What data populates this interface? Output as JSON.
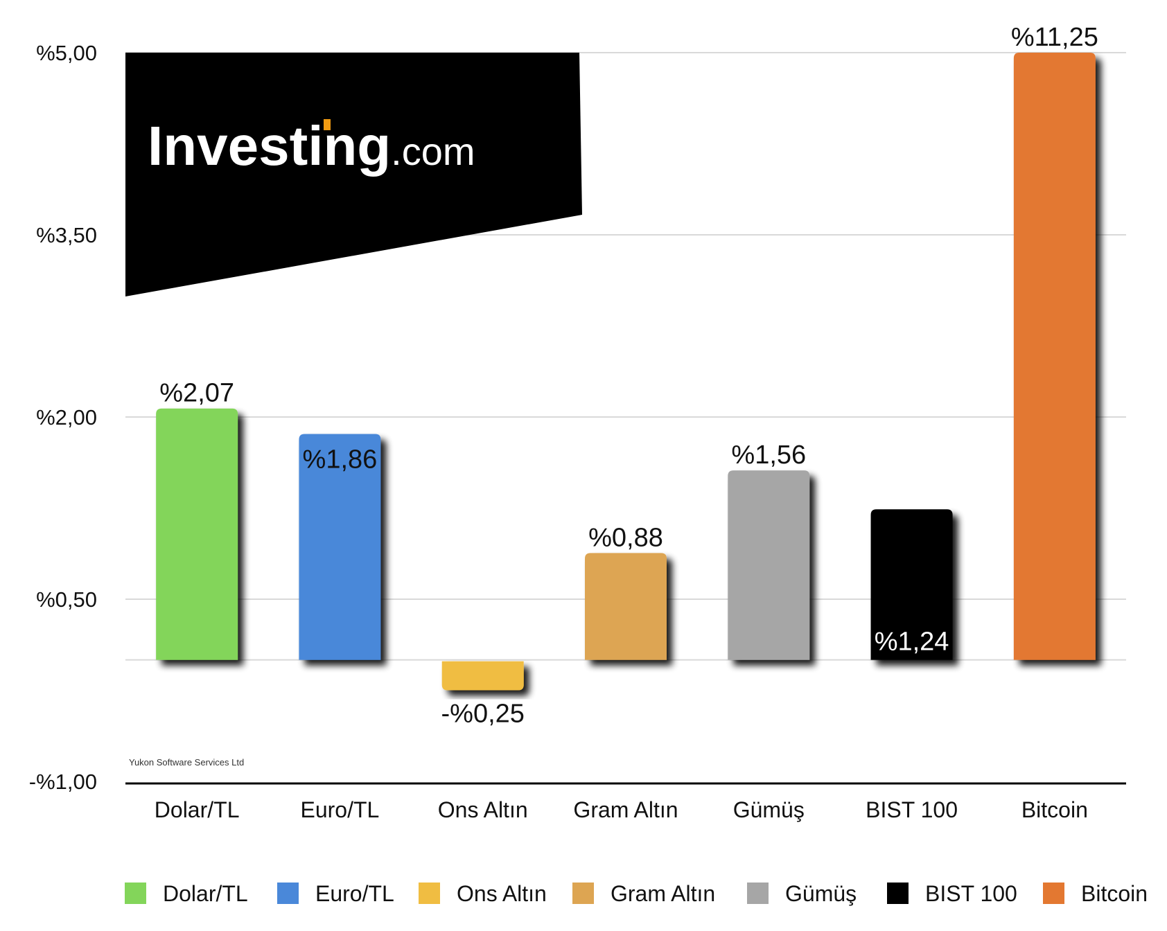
{
  "colors": {
    "logo_panel": "#000000",
    "logo_text": "#ffffff",
    "logo_accent": "#f39c12",
    "grid": "#d9d9d9",
    "baseline": "#000000"
  },
  "logo": {
    "main": "Investing",
    "suffix": ".com"
  },
  "credit": "Yukon Software Services Ltd",
  "chart_data": {
    "type": "bar",
    "y_ticks": [
      {
        "value": 5.0,
        "label": "%5,00"
      },
      {
        "value": 3.5,
        "label": "%3,50"
      },
      {
        "value": 2.0,
        "label": "%2,00"
      },
      {
        "value": 0.5,
        "label": "%0,50"
      },
      {
        "value": -1.0,
        "label": "-%1,00"
      }
    ],
    "ylim": [
      -1.0,
      5.0
    ],
    "grid": true,
    "legend_position": "bottom",
    "categories": [
      "Dolar/TL",
      "Euro/TL",
      "Ons Altın",
      "Gram Altın",
      "Gümüş",
      "BIST 100",
      "Bitcoin"
    ],
    "series": [
      {
        "name": "Dolar/TL",
        "value": 2.07,
        "label": "%2,07",
        "color": "#83d55a",
        "label_color": "#111111"
      },
      {
        "name": "Euro/TL",
        "value": 1.86,
        "label": "%1,86",
        "color": "#4a88d9",
        "label_color": "#111111"
      },
      {
        "name": "Ons Altın",
        "value": -0.25,
        "label": "-%0,25",
        "color": "#f0bd42",
        "label_color": "#111111"
      },
      {
        "name": "Gram Altın",
        "value": 0.88,
        "label": "%0,88",
        "color": "#dda552",
        "label_color": "#111111"
      },
      {
        "name": "Gümüş",
        "value": 1.56,
        "label": "%1,56",
        "color": "#a6a6a6",
        "label_color": "#111111"
      },
      {
        "name": "BIST 100",
        "value": 1.24,
        "label": "%1,24",
        "color": "#000000",
        "label_color": "#ffffff"
      },
      {
        "name": "Bitcoin",
        "value": 11.25,
        "label": "%11,25",
        "color": "#e37831",
        "label_color": "#111111"
      }
    ]
  }
}
